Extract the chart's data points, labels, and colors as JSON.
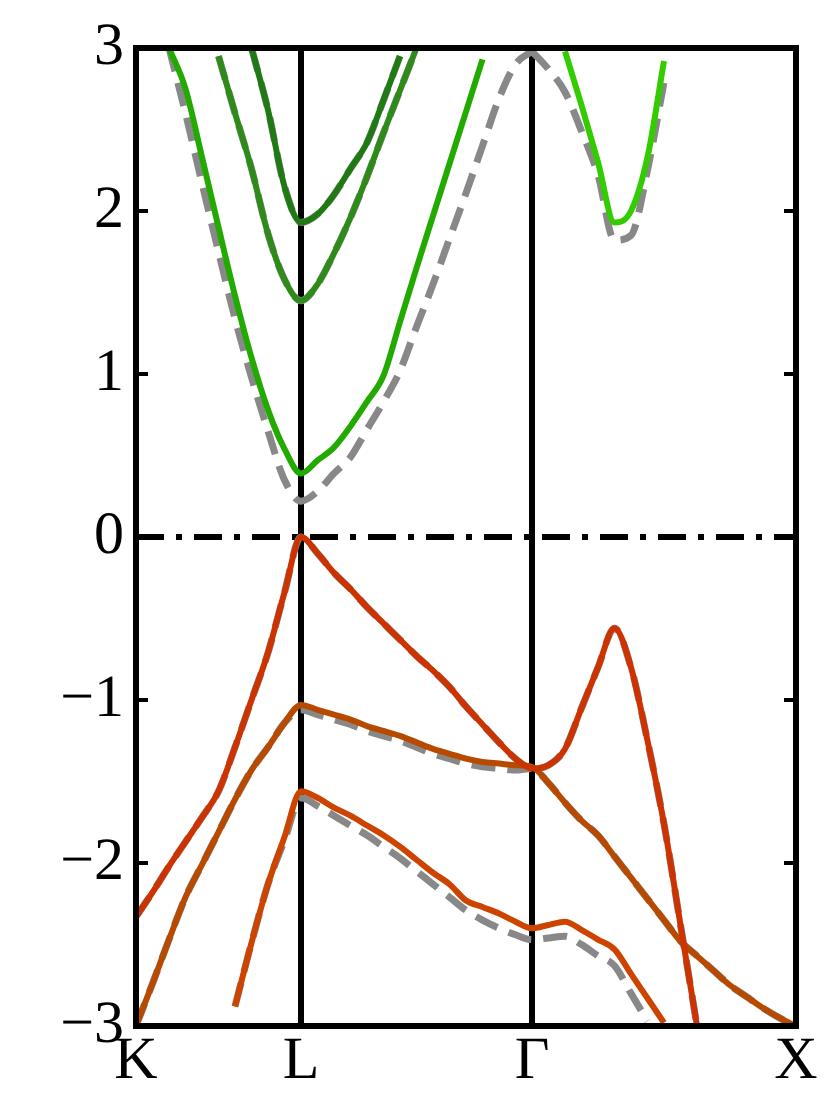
{
  "chart_data": {
    "type": "line",
    "ylim": [
      -3,
      3
    ],
    "categories": [
      "K",
      null,
      null,
      null,
      null,
      null,
      null,
      null,
      null,
      null,
      "L",
      null,
      null,
      null,
      null,
      null,
      null,
      null,
      null,
      null,
      null,
      null,
      null,
      null,
      "Γ",
      null,
      null,
      null,
      null,
      null,
      null,
      null,
      null,
      null,
      null,
      null,
      null,
      null,
      null,
      null,
      "X"
    ],
    "yticks": [
      -3,
      -2,
      -1,
      0,
      1,
      2,
      3
    ],
    "grid": "x",
    "legend": false,
    "marker": "none",
    "ref_lines": [
      {
        "axis": "y",
        "value": 0,
        "color": "#000000",
        "line_style": "dashed"
      }
    ],
    "series": [
      {
        "color": "#22aa00",
        "line_style": "solid",
        "values": [
          null,
          null,
          3,
          2.75,
          2.33,
          1.9,
          1.48,
          1.1,
          0.78,
          0.54,
          0.39,
          0.47,
          0.55,
          0.68,
          0.83,
          0.99,
          1.32,
          1.65,
          1.97,
          2.29,
          2.61,
          2.93,
          null,
          null,
          null,
          null,
          null,
          null,
          null,
          null,
          null,
          null,
          null,
          null,
          null,
          null,
          null,
          null,
          null,
          null,
          null
        ]
      },
      {
        "color": "#2e8b1a",
        "line_style": "solid",
        "values": [
          null,
          null,
          null,
          null,
          null,
          2.95,
          2.6,
          2.26,
          1.86,
          1.58,
          1.45,
          1.55,
          1.74,
          1.96,
          2.21,
          2.48,
          2.74,
          3,
          null,
          null,
          null,
          null,
          null,
          null,
          null,
          null,
          null,
          null,
          null,
          null,
          null,
          null,
          null,
          null,
          null,
          null,
          null,
          null,
          null,
          null,
          null
        ]
      },
      {
        "color": "#1f7a14",
        "line_style": "solid",
        "values": [
          null,
          null,
          null,
          null,
          null,
          null,
          null,
          3,
          2.62,
          2.15,
          1.93,
          1.98,
          2.1,
          2.26,
          2.42,
          2.68,
          2.95,
          null,
          null,
          null,
          null,
          null,
          null,
          null,
          null,
          null,
          null,
          null,
          null,
          null,
          null,
          null,
          null,
          null,
          null,
          null,
          null,
          null,
          null,
          null,
          null
        ]
      },
      {
        "color": "#33cc00",
        "line_style": "solid",
        "values": [
          null,
          null,
          null,
          null,
          null,
          null,
          null,
          null,
          null,
          null,
          null,
          null,
          null,
          null,
          null,
          null,
          null,
          null,
          null,
          null,
          null,
          null,
          null,
          null,
          null,
          null,
          2.98,
          2.65,
          2.3,
          1.93,
          2.0,
          2.33,
          2.92,
          null,
          null,
          null,
          null,
          null,
          null,
          null,
          null
        ]
      },
      {
        "color": "#cc3300",
        "line_style": "solid",
        "values": [
          -2.33,
          -2.18,
          -2.02,
          -1.87,
          -1.72,
          -1.56,
          -1.29,
          -1.0,
          -0.71,
          -0.34,
          0,
          -0.1,
          -0.22,
          -0.32,
          -0.43,
          -0.53,
          -0.63,
          -0.73,
          -0.82,
          -0.92,
          -1.04,
          -1.15,
          -1.26,
          -1.36,
          -1.42,
          -1.4,
          -1.3,
          -1.05,
          -0.8,
          -0.56,
          -0.8,
          -1.25,
          -1.76,
          -2.38,
          -3,
          null,
          null,
          null,
          null,
          null,
          null
        ]
      },
      {
        "color": "#b84a00",
        "line_style": "solid",
        "values": [
          -3,
          -2.74,
          -2.47,
          -2.21,
          -2.01,
          -1.81,
          -1.61,
          -1.43,
          -1.29,
          -1.14,
          -1.03,
          -1.06,
          -1.09,
          -1.12,
          -1.16,
          -1.19,
          -1.22,
          -1.26,
          -1.3,
          -1.33,
          -1.36,
          -1.38,
          -1.39,
          -1.4,
          -1.41,
          -1.51,
          -1.63,
          -1.74,
          -1.83,
          -1.96,
          -2.09,
          -2.22,
          -2.35,
          -2.48,
          -2.57,
          -2.66,
          -2.75,
          -2.82,
          -2.89,
          -2.95,
          -3
        ]
      },
      {
        "color": "#cc4400",
        "line_style": "solid",
        "values": [
          null,
          null,
          null,
          null,
          null,
          null,
          -2.88,
          -2.49,
          -2.13,
          -1.84,
          -1.56,
          -1.6,
          -1.66,
          -1.71,
          -1.77,
          -1.83,
          -1.9,
          -1.98,
          -2.06,
          -2.13,
          -2.23,
          -2.27,
          -2.31,
          -2.36,
          -2.4,
          -2.38,
          -2.36,
          -2.41,
          -2.47,
          -2.53,
          -2.68,
          -2.83,
          -2.98,
          null,
          null,
          null,
          null,
          null,
          null,
          null,
          null
        ]
      },
      {
        "color": "#888888",
        "line_style": "dashed",
        "values": [
          null,
          null,
          3,
          2.6,
          2.17,
          1.75,
          1.34,
          0.98,
          0.65,
          0.35,
          0.22,
          0.28,
          0.39,
          0.49,
          0.66,
          0.83,
          1.02,
          1.29,
          1.55,
          1.83,
          2.11,
          2.4,
          2.69,
          2.9,
          2.98,
          null,
          null,
          null,
          null,
          null,
          null,
          null,
          null,
          null,
          null,
          null,
          null,
          null,
          null,
          null,
          null
        ]
      },
      {
        "color": "#888888",
        "line_style": "dashed",
        "values": [
          null,
          null,
          null,
          null,
          null,
          2.95,
          2.6,
          2.26,
          1.86,
          1.58,
          1.45,
          1.55,
          1.74,
          1.96,
          2.21,
          2.48,
          2.74,
          3,
          null,
          null,
          null,
          null,
          null,
          null,
          null,
          null,
          null,
          null,
          null,
          null,
          null,
          null,
          null,
          null,
          null,
          null,
          null,
          null,
          null,
          null,
          null
        ]
      },
      {
        "color": "#888888",
        "line_style": "dashed",
        "values": [
          null,
          null,
          null,
          null,
          null,
          null,
          null,
          3,
          2.62,
          2.15,
          1.93,
          1.98,
          2.1,
          2.26,
          2.42,
          2.68,
          2.95,
          null,
          null,
          null,
          null,
          null,
          null,
          null,
          null,
          null,
          null,
          null,
          null,
          null,
          null,
          null,
          null,
          null,
          null,
          null,
          null,
          null,
          null,
          null,
          null
        ]
      },
      {
        "color": "#888888",
        "line_style": "dashed",
        "values": [
          null,
          null,
          null,
          null,
          null,
          null,
          null,
          null,
          null,
          null,
          null,
          null,
          null,
          null,
          null,
          null,
          null,
          null,
          null,
          null,
          null,
          null,
          null,
          null,
          2.98,
          2.87,
          2.73,
          2.49,
          2.22,
          1.82,
          1.85,
          2.25,
          2.79,
          null,
          null,
          null,
          null,
          null,
          null,
          null,
          null
        ]
      },
      {
        "color": "#888888",
        "line_style": "dashed",
        "values": [
          -2.33,
          -2.18,
          -2.02,
          -1.87,
          -1.72,
          -1.56,
          -1.29,
          -1.0,
          -0.71,
          -0.34,
          0,
          -0.1,
          -0.22,
          -0.32,
          -0.43,
          -0.53,
          -0.63,
          -0.73,
          -0.82,
          -0.92,
          -1.04,
          -1.15,
          -1.26,
          -1.36,
          -1.42,
          -1.4,
          -1.3,
          -1.05,
          -0.8,
          -0.56,
          -0.8,
          -1.25,
          -1.76,
          -2.38,
          -3,
          null,
          null,
          null,
          null,
          null,
          null
        ]
      },
      {
        "color": "#888888",
        "line_style": "dashed",
        "values": [
          -3,
          -2.74,
          -2.47,
          -2.21,
          -2.01,
          -1.81,
          -1.61,
          -1.43,
          -1.29,
          -1.14,
          -1.06,
          -1.09,
          -1.12,
          -1.15,
          -1.19,
          -1.22,
          -1.25,
          -1.29,
          -1.33,
          -1.36,
          -1.39,
          -1.41,
          -1.42,
          -1.43,
          -1.42,
          -1.51,
          -1.63,
          -1.74,
          -1.83,
          -1.96,
          -2.09,
          -2.22,
          -2.35,
          -2.48,
          -2.57,
          -2.66,
          -2.75,
          -2.82,
          -2.89,
          -2.95,
          -3
        ]
      },
      {
        "color": "#888888",
        "line_style": "dashed",
        "values": [
          null,
          null,
          null,
          null,
          null,
          null,
          -2.88,
          -2.49,
          -2.13,
          -1.86,
          -1.6,
          -1.65,
          -1.71,
          -1.77,
          -1.83,
          -1.9,
          -1.97,
          -2.05,
          -2.13,
          -2.21,
          -2.29,
          -2.35,
          -2.4,
          -2.44,
          -2.47,
          -2.46,
          -2.45,
          -2.5,
          -2.57,
          -2.63,
          -2.8,
          -2.97,
          null,
          null,
          null,
          null,
          null,
          null,
          null,
          null,
          null
        ]
      }
    ]
  }
}
